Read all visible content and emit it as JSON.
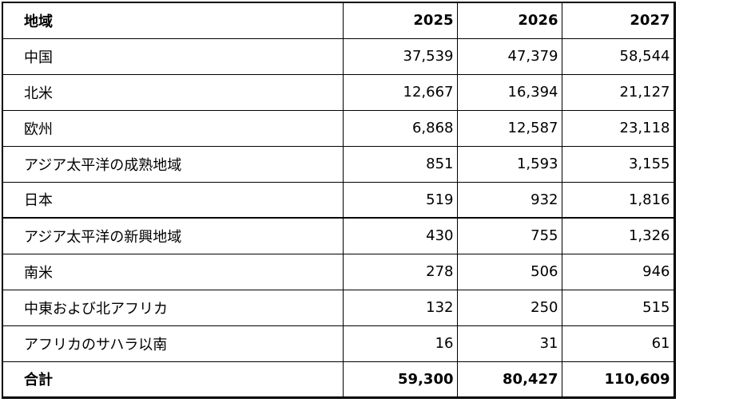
{
  "table": {
    "header": [
      "地域",
      "2025",
      "2026",
      "2027"
    ],
    "rows": [
      [
        "中国",
        "37,539",
        "47,379",
        "58,544"
      ],
      [
        "北米",
        "12,667",
        "16,394",
        "21,127"
      ],
      [
        "欧州",
        "6,868",
        "12,587",
        "23,118"
      ],
      [
        "アジア太平洋の成熟地域",
        "851",
        "1,593",
        "3,155"
      ],
      [
        "日本",
        "519",
        "932",
        "1,816"
      ],
      [
        "アジア太平洋の新興地域",
        "430",
        "755",
        "1,326"
      ],
      [
        "南米",
        "278",
        "506",
        "946"
      ],
      [
        "中東および北アフリカ",
        "132",
        "250",
        "515"
      ],
      [
        "アフリカのサハラ以南",
        "16",
        "31",
        "61"
      ]
    ],
    "total": [
      "合計",
      "59,300",
      "80,427",
      "110,609"
    ]
  }
}
